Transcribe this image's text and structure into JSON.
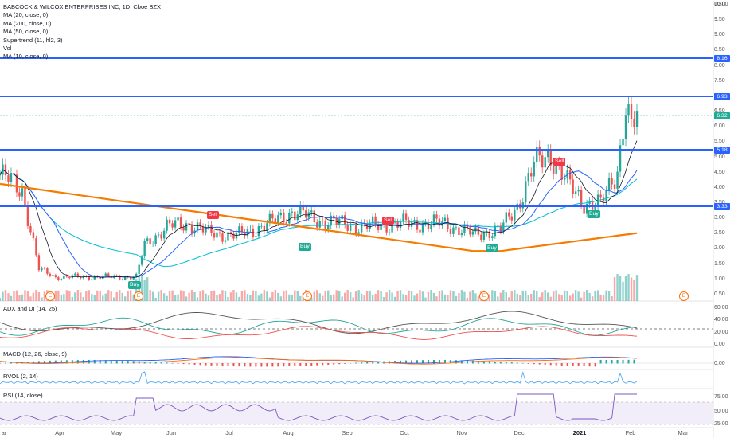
{
  "legend": {
    "title": "BABCOCK & WILCOX ENTERPRISES INC, 1D, Cboe BZX",
    "indicators": [
      "MA (20, close, 0)",
      "MA (200, close, 0)",
      "MA (50, close, 0)",
      "Supertrend (11, hl2, 3)",
      "Vol",
      "MA (10, close, 0)"
    ]
  },
  "currency": "USD",
  "price_axis": [
    "10.00",
    "9.50",
    "9.00",
    "8.50",
    "8.00",
    "7.50",
    "7.00",
    "6.50",
    "6.00",
    "5.50",
    "5.00",
    "4.50",
    "4.00",
    "3.50",
    "3.00",
    "2.50",
    "2.00",
    "1.50",
    "1.00",
    "0.50"
  ],
  "horizontal_levels": [
    {
      "label": "8.16",
      "color": "#2962ff"
    },
    {
      "label": "6.93",
      "color": "#2962ff"
    },
    {
      "label": "6.32",
      "color": "#22ab94"
    },
    {
      "label": "5.18",
      "color": "#2962ff"
    },
    {
      "label": "3.33",
      "color": "#2962ff"
    }
  ],
  "signals": [
    {
      "text": "Sell",
      "type": "sell"
    },
    {
      "text": "Sell",
      "type": "sell"
    },
    {
      "text": "Sell",
      "type": "sell"
    },
    {
      "text": "Buy",
      "type": "buy"
    },
    {
      "text": "Buy",
      "type": "buy"
    },
    {
      "text": "Buy",
      "type": "buy"
    },
    {
      "text": "Buy",
      "type": "buy"
    }
  ],
  "earnings_marker": "E",
  "panes": {
    "adx": {
      "label": "ADX and DI (14, 25)",
      "ticks": [
        "60.00",
        "40.00",
        "20.00",
        "0.00"
      ]
    },
    "macd": {
      "label": "MACD (12, 26, close, 9)",
      "ticks": [
        "0.00"
      ]
    },
    "rvol": {
      "label": "RVOL (2, 14)",
      "ticks": []
    },
    "rsi": {
      "label": "RSI (14, close)",
      "ticks": [
        "75.00",
        "50.00",
        "25.00"
      ]
    }
  },
  "time_axis": [
    "ar",
    "Apr",
    "May",
    "Jun",
    "Jul",
    "Aug",
    "Sep",
    "Oct",
    "Nov",
    "Dec",
    "2021",
    "Feb",
    "Mar"
  ],
  "colors": {
    "up": "#26a69a",
    "down": "#ef5350",
    "level": "#2962ff",
    "ma20": "#2962ff",
    "ma200": "#f57c00",
    "ma50": "#00bcd4",
    "ma10": "#131722",
    "rsi": "#7e57c2"
  }
}
